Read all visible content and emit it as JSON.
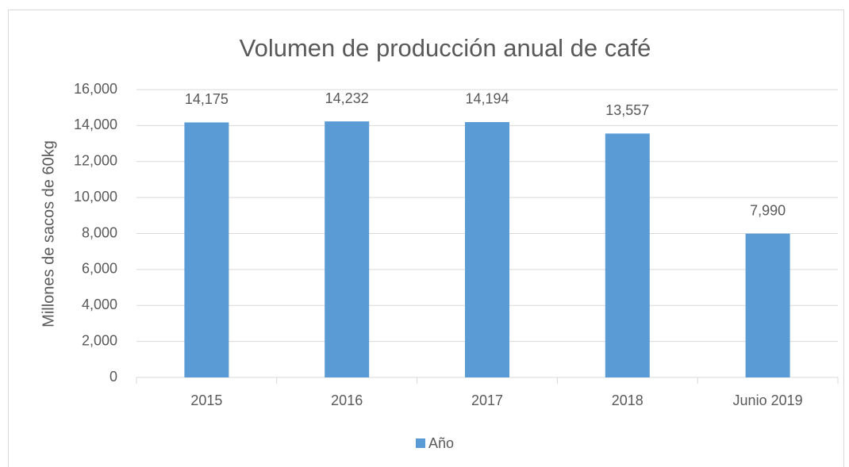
{
  "chart_data": {
    "type": "bar",
    "title": "Volumen de producción anual de café",
    "y_label": "Millones de sacos de 60kg",
    "categories": [
      "2015",
      "2016",
      "2017",
      "2018",
      "Junio 2019"
    ],
    "series": [
      {
        "name": "Año",
        "color": "#5b9bd5",
        "values": [
          14175,
          14232,
          14194,
          13557,
          7990
        ],
        "value_labels": [
          "14,175",
          "14,232",
          "14,194",
          "13,557",
          "7,990"
        ]
      }
    ],
    "ylim": [
      0,
      16000
    ],
    "yticks": [
      0,
      {
        "value": 2000,
        "label": "2,000"
      },
      {
        "value": 4000,
        "label": "4,000"
      },
      {
        "value": 6000,
        "label": "6,000"
      },
      {
        "value": 8000,
        "label": "8,000"
      },
      {
        "value": 10000,
        "label": "10,000"
      },
      {
        "value": 12000,
        "label": "12,000"
      },
      {
        "value": 14000,
        "label": "14,000"
      },
      {
        "value": 16000,
        "label": "16,000"
      }
    ],
    "grid": true,
    "legend": "bottom"
  }
}
